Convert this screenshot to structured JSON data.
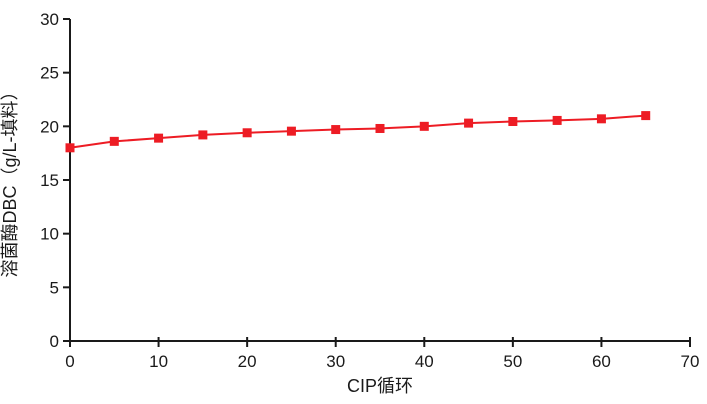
{
  "figure": {
    "background_color": "#ffffff",
    "text_color": "#1a1a1a",
    "accent_color": "#ED1C24"
  },
  "chart_data": {
    "type": "line",
    "title": "",
    "xlabel": "CIP循环",
    "ylabel": "溶菌酶DBC（g/L-填料）",
    "x": [
      0,
      5,
      10,
      15,
      20,
      25,
      30,
      35,
      40,
      45,
      50,
      55,
      60,
      65
    ],
    "values": [
      18.0,
      18.6,
      18.9,
      19.2,
      19.4,
      19.55,
      19.7,
      19.8,
      20.0,
      20.3,
      20.45,
      20.55,
      20.7,
      21.0
    ],
    "xlim": [
      0,
      70
    ],
    "ylim": [
      0,
      30
    ],
    "x_ticks": [
      0,
      10,
      20,
      30,
      40,
      50,
      60,
      70
    ],
    "y_ticks": [
      0,
      5,
      10,
      15,
      20,
      25,
      30
    ],
    "grid": false,
    "legend": false,
    "line_color": "#ED1C24",
    "marker": "square",
    "marker_color": "#ED1C24"
  }
}
